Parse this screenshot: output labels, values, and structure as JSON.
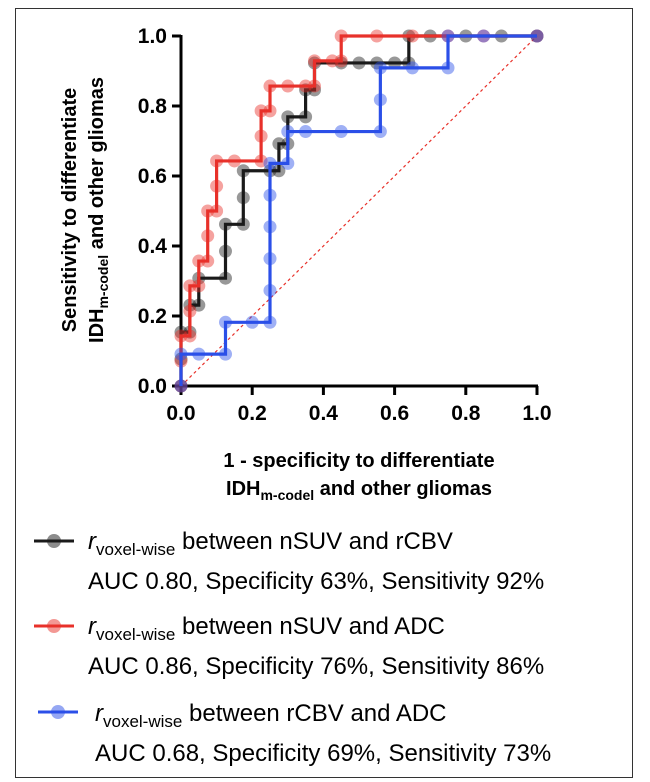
{
  "chart_data": {
    "type": "line",
    "xlabel_line1": "1 - specificity to differentiate",
    "xlabel_line2_main": "IDH",
    "xlabel_line2_sub": "m-codel",
    "xlabel_line2_rest": " and other gliomas",
    "ylabel_line1": "Sensitivity  to differentiate",
    "ylabel_line2_main": "IDH",
    "ylabel_line2_sub": "m-codel",
    "ylabel_line2_rest": " and other gliomas",
    "xlim": [
      0,
      1
    ],
    "ylim": [
      0,
      1
    ],
    "x_ticks": [
      "0.0",
      "0.2",
      "0.4",
      "0.6",
      "0.8",
      "1.0"
    ],
    "y_ticks": [
      "0.0",
      "0.2",
      "0.4",
      "0.6",
      "0.8",
      "1.0"
    ],
    "diagonal": true,
    "diagonal_color": "#e8312a",
    "series": [
      {
        "name_r": "r",
        "name_sub": "voxel-wise",
        "name_rest": " between nSUV and rCBV",
        "stats": "AUC 0.80, Specificity 63%, Sensitivity 92%",
        "color": "#1a1a1a",
        "points": [
          [
            0,
            0
          ],
          [
            0,
            0.077
          ],
          [
            0,
            0.154
          ],
          [
            0.025,
            0.154
          ],
          [
            0.025,
            0.231
          ],
          [
            0.05,
            0.231
          ],
          [
            0.05,
            0.308
          ],
          [
            0.125,
            0.308
          ],
          [
            0.125,
            0.385
          ],
          [
            0.125,
            0.462
          ],
          [
            0.175,
            0.462
          ],
          [
            0.175,
            0.538
          ],
          [
            0.175,
            0.615
          ],
          [
            0.25,
            0.615
          ],
          [
            0.275,
            0.615
          ],
          [
            0.275,
            0.692
          ],
          [
            0.3,
            0.692
          ],
          [
            0.3,
            0.769
          ],
          [
            0.35,
            0.769
          ],
          [
            0.35,
            0.846
          ],
          [
            0.375,
            0.846
          ],
          [
            0.375,
            0.923
          ],
          [
            0.45,
            0.923
          ],
          [
            0.5,
            0.923
          ],
          [
            0.55,
            0.923
          ],
          [
            0.6,
            0.923
          ],
          [
            0.64,
            0.923
          ],
          [
            0.64,
            1.0
          ],
          [
            0.7,
            1.0
          ],
          [
            0.8,
            1.0
          ],
          [
            0.9,
            1.0
          ],
          [
            1.0,
            1.0
          ]
        ]
      },
      {
        "name_r": "r",
        "name_sub": "voxel-wise",
        "name_rest": " between nSUV and ADC",
        "stats": "AUC 0.86, Specificity 76%, Sensitivity 86%",
        "color": "#e8312a",
        "points": [
          [
            0,
            0
          ],
          [
            0,
            0.071
          ],
          [
            0,
            0.143
          ],
          [
            0.025,
            0.143
          ],
          [
            0.025,
            0.214
          ],
          [
            0.025,
            0.286
          ],
          [
            0.05,
            0.286
          ],
          [
            0.05,
            0.357
          ],
          [
            0.075,
            0.357
          ],
          [
            0.075,
            0.429
          ],
          [
            0.075,
            0.5
          ],
          [
            0.1,
            0.5
          ],
          [
            0.1,
            0.571
          ],
          [
            0.1,
            0.643
          ],
          [
            0.15,
            0.643
          ],
          [
            0.225,
            0.643
          ],
          [
            0.225,
            0.714
          ],
          [
            0.225,
            0.786
          ],
          [
            0.25,
            0.786
          ],
          [
            0.25,
            0.857
          ],
          [
            0.3,
            0.857
          ],
          [
            0.35,
            0.857
          ],
          [
            0.375,
            0.857
          ],
          [
            0.375,
            0.929
          ],
          [
            0.425,
            0.929
          ],
          [
            0.45,
            0.929
          ],
          [
            0.45,
            1.0
          ],
          [
            0.55,
            1.0
          ],
          [
            0.65,
            1.0
          ],
          [
            0.75,
            1.0
          ],
          [
            0.85,
            1.0
          ],
          [
            1.0,
            1.0
          ]
        ]
      },
      {
        "name_r": "r",
        "name_sub": "voxel-wise",
        "name_rest": " between rCBV and ADC",
        "stats": "AUC 0.68, Specificity 69%, Sensitivity 73%",
        "color": "#2b4fe8",
        "points": [
          [
            0,
            0
          ],
          [
            0,
            0.091
          ],
          [
            0.05,
            0.091
          ],
          [
            0.125,
            0.091
          ],
          [
            0.125,
            0.182
          ],
          [
            0.2,
            0.182
          ],
          [
            0.25,
            0.182
          ],
          [
            0.25,
            0.273
          ],
          [
            0.25,
            0.364
          ],
          [
            0.25,
            0.455
          ],
          [
            0.25,
            0.545
          ],
          [
            0.25,
            0.636
          ],
          [
            0.3,
            0.636
          ],
          [
            0.3,
            0.727
          ],
          [
            0.35,
            0.727
          ],
          [
            0.45,
            0.727
          ],
          [
            0.56,
            0.727
          ],
          [
            0.56,
            0.818
          ],
          [
            0.56,
            0.909
          ],
          [
            0.65,
            0.909
          ],
          [
            0.75,
            0.909
          ],
          [
            0.75,
            1.0
          ],
          [
            0.85,
            1.0
          ],
          [
            1.0,
            1.0
          ]
        ]
      }
    ]
  }
}
